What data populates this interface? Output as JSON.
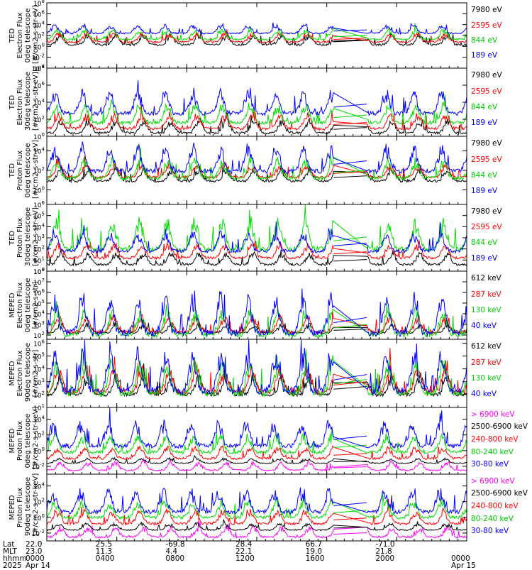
{
  "chart_data": {
    "type": "line",
    "x_axis": {
      "rows": [
        "Lat",
        "MLT",
        "hhmm",
        "2025"
      ],
      "ticks": [
        {
          "lat": "22.0",
          "mlt": "23.0",
          "hhmm": "0000",
          "date": "Apr 14"
        },
        {
          "lat": "25.5",
          "mlt": "11.3",
          "hhmm": "0400",
          "date": ""
        },
        {
          "lat": "-69.8",
          "mlt": "4.4",
          "hhmm": "0800",
          "date": ""
        },
        {
          "lat": "28.4",
          "mlt": "22.1",
          "hhmm": "1200",
          "date": ""
        },
        {
          "lat": "66.7",
          "mlt": "19.0",
          "hhmm": "1600",
          "date": ""
        },
        {
          "lat": "-71.0",
          "mlt": "21.8",
          "hhmm": "2000",
          "date": ""
        },
        {
          "lat": "",
          "mlt": "",
          "hhmm": "0000",
          "date": "Apr 15"
        }
      ]
    },
    "panels": [
      {
        "ylabel": [
          "TED",
          "Electron Flux",
          "0deg telescope",
          "[#/cm2-s-str-eV]"
        ],
        "ytick_labels": [
          "10-4",
          "10-2",
          "100",
          "102",
          "104",
          "106",
          "108"
        ],
        "ylim_exp": [
          -4,
          8
        ],
        "series": [
          {
            "name": "7980 eV",
            "color": "#000000",
            "base": 0.3,
            "amp": 1.8
          },
          {
            "name": "2595 eV",
            "color": "#ff0000",
            "base": 0.8,
            "amp": 1.6
          },
          {
            "name": "844 eV",
            "color": "#00dd00",
            "base": 1.3,
            "amp": 1.6
          },
          {
            "name": "189 eV",
            "color": "#0000ff",
            "base": 2.4,
            "amp": 1.4
          }
        ]
      },
      {
        "ylabel": [
          "TED",
          "Electron Flux",
          "30deg telescope",
          "[#/cm2-s-str-eV]"
        ],
        "ytick_labels": [
          "100",
          "102",
          "104",
          "106",
          "108"
        ],
        "ylim_exp": [
          0,
          8
        ],
        "series": [
          {
            "name": "7980 eV",
            "color": "#000000",
            "base": 0.4,
            "amp": 1.4
          },
          {
            "name": "2595 eV",
            "color": "#ff0000",
            "base": 0.9,
            "amp": 1.6
          },
          {
            "name": "844 eV",
            "color": "#00dd00",
            "base": 1.6,
            "amp": 2.0
          },
          {
            "name": "189 eV",
            "color": "#0000ff",
            "base": 2.7,
            "amp": 2.4
          }
        ]
      },
      {
        "ylabel": [
          "TED",
          "Proton Flux",
          "0deg telescope",
          "[#/cm2-s-str-eV]"
        ],
        "ytick_labels": [
          "100",
          "102",
          "104"
        ],
        "ylim_exp": [
          -1.5,
          5.5
        ],
        "series": [
          {
            "name": "7980 eV",
            "color": "#000000",
            "base": 0.9,
            "amp": 1.2
          },
          {
            "name": "2595 eV",
            "color": "#ff0000",
            "base": 1.3,
            "amp": 1.3
          },
          {
            "name": "844 eV",
            "color": "#00dd00",
            "base": 1.2,
            "amp": 1.8
          },
          {
            "name": "189 eV",
            "color": "#0000ff",
            "base": 1.9,
            "amp": 2.4
          }
        ]
      },
      {
        "ylabel": [
          "TED",
          "Proton Flux",
          "30deg telescope",
          "[#/cm2-s-str-eV]"
        ],
        "ytick_labels": [
          "100",
          "101",
          "102",
          "103",
          "104",
          "105",
          "106"
        ],
        "ylim_exp": [
          0,
          6
        ],
        "series": [
          {
            "name": "7980 eV",
            "color": "#000000",
            "base": 0.6,
            "amp": 1.0
          },
          {
            "name": "2595 eV",
            "color": "#ff0000",
            "base": 1.2,
            "amp": 1.2
          },
          {
            "name": "844 eV",
            "color": "#00dd00",
            "base": 2.0,
            "amp": 2.4
          },
          {
            "name": "189 eV",
            "color": "#0000ff",
            "base": 1.8,
            "amp": 1.6
          }
        ]
      },
      {
        "ylabel": [
          "MEPED",
          "Electron Flux",
          "0deg telescope",
          "[#/cm2-s-str]"
        ],
        "ytick_labels": [
          "102",
          "103",
          "104",
          "105",
          "106",
          "107",
          "108"
        ],
        "ylim_exp": [
          1.6,
          8
        ],
        "series": [
          {
            "name": "612 keV",
            "color": "#000000",
            "base": 2.2,
            "amp": 0.8
          },
          {
            "name": "287 keV",
            "color": "#ff0000",
            "base": 2.3,
            "amp": 1.4
          },
          {
            "name": "130 keV",
            "color": "#00dd00",
            "base": 2.0,
            "amp": 2.2
          },
          {
            "name": "40 keV",
            "color": "#0000ff",
            "base": 2.2,
            "amp": 3.2
          }
        ]
      },
      {
        "ylabel": [
          "MEPED",
          "Electron Flux",
          "90deg telescope",
          "[#/cm2-s-str]"
        ],
        "ytick_labels": [
          "101",
          "102",
          "103",
          "104",
          "105",
          "106"
        ],
        "ylim_exp": [
          1,
          6.3
        ],
        "series": [
          {
            "name": "612 keV",
            "color": "#000000",
            "base": 2.0,
            "amp": 1.4
          },
          {
            "name": "287 keV",
            "color": "#ff0000",
            "base": 2.2,
            "amp": 1.8
          },
          {
            "name": "130 keV",
            "color": "#00dd00",
            "base": 2.1,
            "amp": 2.4
          },
          {
            "name": "40 keV",
            "color": "#0000ff",
            "base": 2.3,
            "amp": 2.8
          }
        ]
      },
      {
        "ylabel": [
          "MEPED",
          "Proton Flux",
          "0deg telescope",
          "[#/cm2-s-str-keV]"
        ],
        "ytick_labels": [
          "10-2",
          "100",
          "102",
          "104"
        ],
        "ylim_exp": [
          -3,
          5.5
        ],
        "series": [
          {
            "name": "> 6900 keV",
            "color": "#ff00ff",
            "base": -2.5,
            "amp": 1.0
          },
          {
            "name": "2500-6900 keV",
            "color": "#000000",
            "base": -1.6,
            "amp": 0.6
          },
          {
            "name": "240-800 keV",
            "color": "#ff0000",
            "base": -1.0,
            "amp": 1.4
          },
          {
            "name": "80-240 keV",
            "color": "#00dd00",
            "base": -0.2,
            "amp": 2.0
          },
          {
            "name": "30-80 keV",
            "color": "#0000ff",
            "base": 0.6,
            "amp": 2.8
          }
        ]
      },
      {
        "ylabel": [
          "MEPED",
          "Proton Flux",
          "90deg telescope",
          "[#/cm2-s-str-keV]"
        ],
        "ytick_labels": [
          "10-2",
          "100",
          "102",
          "104"
        ],
        "ylim_exp": [
          -3,
          5.5
        ],
        "series": [
          {
            "name": "> 6900 keV",
            "color": "#ff00ff",
            "base": -2.5,
            "amp": 1.2
          },
          {
            "name": "2500-6900 keV",
            "color": "#000000",
            "base": -1.6,
            "amp": 0.8
          },
          {
            "name": "240-800 keV",
            "color": "#ff0000",
            "base": -0.8,
            "amp": 1.6
          },
          {
            "name": "80-240 keV",
            "color": "#00dd00",
            "base": 0.0,
            "amp": 2.0
          },
          {
            "name": "30-80 keV",
            "color": "#0000ff",
            "base": 0.7,
            "amp": 2.6
          }
        ]
      }
    ]
  }
}
